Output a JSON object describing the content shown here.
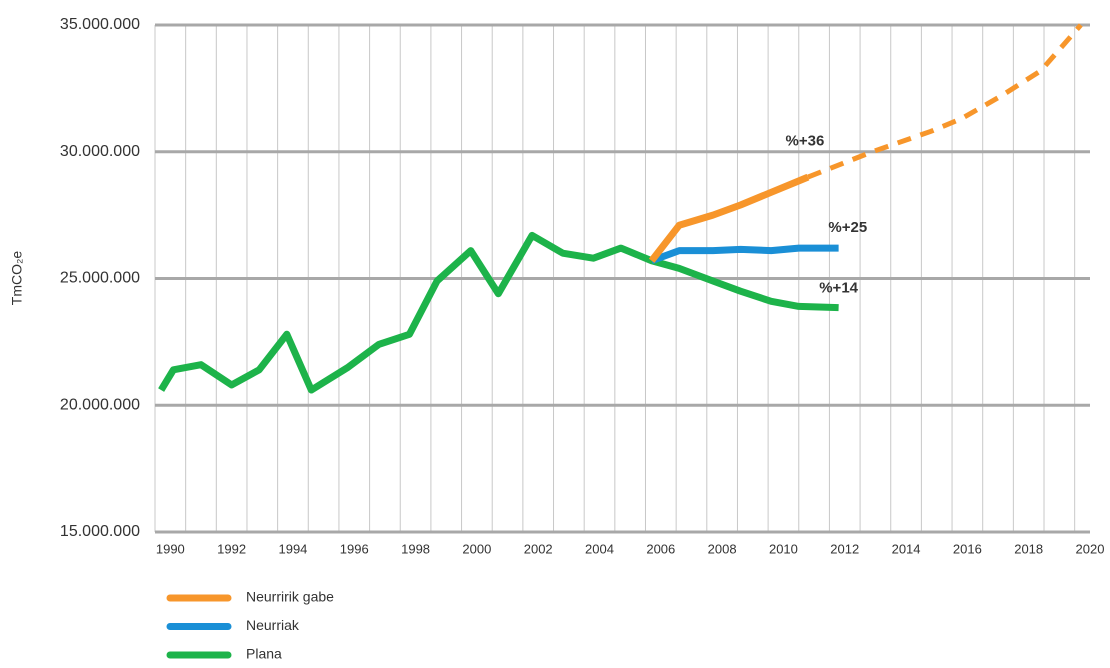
{
  "chart_data": {
    "type": "line",
    "y_label": "TmCO₂e",
    "xlim": [
      1989.5,
      2020
    ],
    "xticks": [
      1990,
      1992,
      1994,
      1996,
      1998,
      2000,
      2002,
      2004,
      2006,
      2008,
      2010,
      2012,
      2014,
      2016,
      2018,
      2020
    ],
    "xgrid": [
      1989.5,
      1990.5,
      1991.5,
      1992.5,
      1993.5,
      1994.5,
      1995.5,
      1996.5,
      1997.5,
      1998.5,
      1999.5,
      2000.5,
      2001.5,
      2002.5,
      2003.5,
      2004.5,
      2005.5,
      2006.5,
      2007.5,
      2008.5,
      2009.5,
      2010.5,
      2011.5,
      2012.5,
      2013.5,
      2014.5,
      2015.5,
      2016.5,
      2017.5,
      2018.5,
      2019.5
    ],
    "ylim": [
      15000000,
      35000000
    ],
    "yticks": [
      {
        "value": 15000000,
        "label": "15.000.000"
      },
      {
        "value": 20000000,
        "label": "20.000.000"
      },
      {
        "value": 25000000,
        "label": "25.000.000"
      },
      {
        "value": 30000000,
        "label": "30.000.000"
      },
      {
        "value": 35000000,
        "label": "35.000.000"
      }
    ],
    "grid": true,
    "series": [
      {
        "name": "Neurririk gabe",
        "color": "#f7962b",
        "x": [
          2005.7,
          2006.6,
          2007.7,
          2008.6,
          2009.6,
          2010.8
        ],
        "values": [
          25700000,
          27100000,
          27500000,
          27900000,
          28400000,
          29000000
        ],
        "projection": {
          "x": [
            2010.8,
            2012.9,
            2014.8,
            2015.8,
            2017.1,
            2018.4,
            2019.7
          ],
          "values": [
            29000000,
            30000000,
            30800000,
            31300000,
            32200000,
            33200000,
            35000000
          ]
        }
      },
      {
        "name": "Neurriak",
        "color": "#1a8fd6",
        "x": [
          2005.7,
          2006.6,
          2007.7,
          2008.6,
          2009.6,
          2010.5,
          2011.8
        ],
        "values": [
          25700000,
          26100000,
          26100000,
          26150000,
          26100000,
          26200000,
          26200000
        ]
      },
      {
        "name": "Plana",
        "color": "#1db34a",
        "x": [
          1989.7,
          1990.1,
          1991.0,
          1992.0,
          1992.9,
          1993.8,
          1994.6,
          1995.8,
          1996.8,
          1997.8,
          1998.7,
          1999.8,
          2000.7,
          2001.8,
          2002.8,
          2003.8,
          2004.7,
          2005.7,
          2006.6,
          2007.7,
          2008.6,
          2009.6,
          2010.5,
          2011.8
        ],
        "values": [
          20600000,
          21400000,
          21600000,
          20800000,
          21400000,
          22800000,
          20600000,
          21500000,
          22400000,
          22800000,
          24900000,
          26100000,
          24400000,
          26700000,
          26000000,
          25800000,
          26200000,
          25700000,
          25400000,
          24900000,
          24500000,
          24100000,
          23900000,
          23850000
        ]
      }
    ],
    "annotations": [
      {
        "text": "%+36",
        "x": 2010.7,
        "y": 30400000
      },
      {
        "text": "%+25",
        "x": 2012.1,
        "y": 27000000
      },
      {
        "text": "%+14",
        "x": 2011.8,
        "y": 24600000
      }
    ],
    "legend": "bottom-left"
  }
}
